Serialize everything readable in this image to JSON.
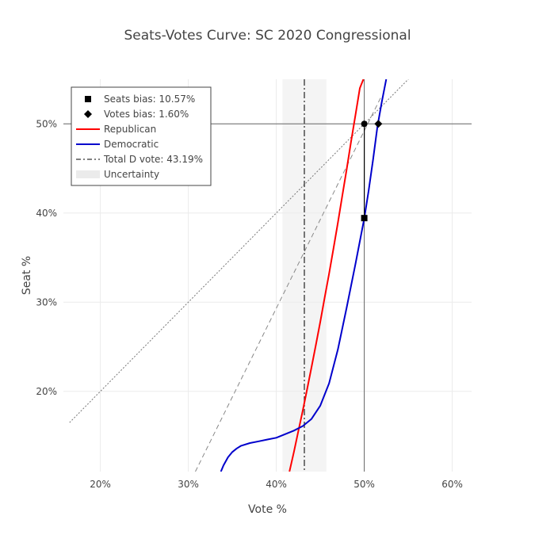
{
  "chart_data": {
    "type": "line",
    "title": "Seats-Votes Curve: SC 2020 Congressional",
    "xlabel": "Vote %",
    "ylabel": "Seat %",
    "xlim": [
      15.8,
      62.2
    ],
    "ylim": [
      11.0,
      55.0
    ],
    "xticks": [
      20,
      30,
      40,
      50,
      60
    ],
    "xtick_labels": [
      "20%",
      "30%",
      "40%",
      "50%",
      "60%"
    ],
    "yticks": [
      20,
      30,
      40,
      50
    ],
    "ytick_labels": [
      "20%",
      "30%",
      "40%",
      "50%"
    ],
    "grid": true,
    "legend_position": "top-left",
    "series": [
      {
        "name": "Republican",
        "color": "#ff0000",
        "x": [
          41.5,
          42.0,
          42.5,
          43.0,
          43.5,
          44.0,
          44.5,
          45.0,
          45.5,
          46.0,
          46.5,
          47.0,
          47.5,
          48.0,
          48.5,
          49.0,
          49.5,
          49.9
        ],
        "y": [
          11.0,
          13.2,
          15.5,
          17.8,
          20.2,
          22.7,
          25.2,
          27.8,
          30.5,
          33.2,
          36.0,
          38.9,
          41.9,
          44.9,
          48.0,
          51.0,
          54.0,
          55.0
        ]
      },
      {
        "name": "Democratic",
        "color": "#0000cc",
        "x": [
          33.7,
          34.0,
          34.5,
          35.0,
          35.5,
          36.0,
          37.0,
          38.0,
          39.0,
          40.0,
          41.0,
          42.0,
          43.0,
          44.0,
          45.0,
          46.0,
          47.0,
          48.0,
          49.0,
          50.0,
          50.5,
          51.0,
          51.5,
          52.0,
          52.5
        ],
        "y": [
          11.0,
          11.7,
          12.6,
          13.2,
          13.6,
          13.9,
          14.2,
          14.4,
          14.6,
          14.8,
          15.2,
          15.6,
          16.1,
          16.9,
          18.4,
          20.9,
          24.7,
          29.4,
          34.3,
          39.4,
          42.5,
          46.0,
          49.7,
          52.5,
          55.0
        ]
      }
    ],
    "reference_lines": {
      "diagonal": {
        "x": [
          16.5,
          55.2
        ],
        "y": [
          16.5,
          55.2
        ]
      },
      "symmetric_dashed": {
        "x": [
          30.8,
          52.0
        ],
        "y": [
          11.0,
          53.2
        ]
      }
    },
    "markers": [
      {
        "name": "Seats bias: 10.57%",
        "symbol": "square",
        "x": 50.0,
        "y": 39.43
      },
      {
        "name": "Votes bias: 1.60%",
        "symbol": "diamond",
        "x": 51.6,
        "y": 50.0
      }
    ],
    "midpoint_marker": {
      "x": 50.0,
      "y": 50.0
    },
    "total_d_vote": {
      "label": "Total D vote: 43.19%",
      "x": 43.19
    },
    "uncertainty": {
      "label": "Uncertainty",
      "x": [
        40.7,
        45.7
      ]
    },
    "hlines": [
      50
    ],
    "vlines": [
      50
    ],
    "legend": [
      {
        "label": "Seats bias: 10.57%",
        "kind": "square"
      },
      {
        "label": "Votes bias: 1.60%",
        "kind": "diamond"
      },
      {
        "label": "Republican",
        "kind": "line-red"
      },
      {
        "label": "Democratic",
        "kind": "line-blue"
      },
      {
        "label": "Total D vote: 43.19%",
        "kind": "dashdot"
      },
      {
        "label": "Uncertainty",
        "kind": "band"
      }
    ]
  }
}
